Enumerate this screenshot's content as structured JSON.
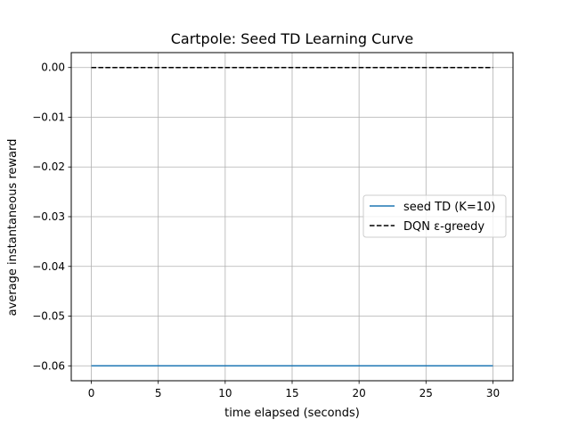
{
  "chart_data": {
    "type": "line",
    "title": "Cartpole: Seed TD Learning Curve",
    "xlabel": "time elapsed (seconds)",
    "ylabel": "average instantaneous reward",
    "xlim": [
      -1.5,
      31.5
    ],
    "ylim": [
      -0.063,
      0.003
    ],
    "xticks": [
      0,
      5,
      10,
      15,
      20,
      25,
      30
    ],
    "xtick_labels": [
      "0",
      "5",
      "10",
      "15",
      "20",
      "25",
      "30"
    ],
    "yticks": [
      0.0,
      -0.01,
      -0.02,
      -0.03,
      -0.04,
      -0.05,
      -0.06
    ],
    "ytick_labels": [
      "0.00",
      "−0.01",
      "−0.02",
      "−0.03",
      "−0.04",
      "−0.05",
      "−0.06"
    ],
    "grid": true,
    "legend_position": "center-right",
    "series": [
      {
        "name": "seed TD (K=10)",
        "style": "solid",
        "color": "#1f77b4",
        "x": [
          0,
          30
        ],
        "y": [
          -0.06,
          -0.06
        ]
      },
      {
        "name": "DQN ε-greedy",
        "style": "dashed",
        "color": "#000000",
        "x": [
          0,
          30
        ],
        "y": [
          0.0,
          0.0
        ]
      }
    ]
  }
}
